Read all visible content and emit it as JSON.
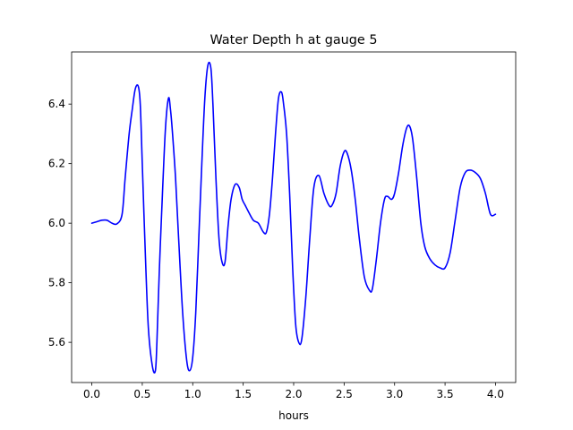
{
  "chart_data": {
    "type": "line",
    "title": "Water Depth h at gauge 5",
    "xlabel": "hours",
    "ylabel": "",
    "xlim": [
      -0.2,
      4.2
    ],
    "ylim": [
      5.465,
      6.575
    ],
    "xticks": [
      0.0,
      0.5,
      1.0,
      1.5,
      2.0,
      2.5,
      3.0,
      3.5,
      4.0
    ],
    "xtick_labels": [
      "0.0",
      "0.5",
      "1.0",
      "1.5",
      "2.0",
      "2.5",
      "3.0",
      "3.5",
      "4.0"
    ],
    "yticks": [
      5.6,
      5.8,
      6.0,
      6.2,
      6.4
    ],
    "ytick_labels": [
      "5.6",
      "5.8",
      "6.0",
      "6.2",
      "6.4"
    ],
    "grid": false,
    "series": [
      {
        "color": "#0000ff",
        "x": [
          0.0,
          0.05,
          0.1,
          0.15,
          0.2,
          0.25,
          0.3,
          0.33,
          0.37,
          0.4,
          0.43,
          0.46,
          0.48,
          0.5,
          0.53,
          0.56,
          0.6,
          0.63,
          0.645,
          0.67,
          0.7,
          0.73,
          0.76,
          0.78,
          0.8,
          0.83,
          0.86,
          0.9,
          0.94,
          0.97,
          1.0,
          1.03,
          1.06,
          1.09,
          1.12,
          1.15,
          1.18,
          1.2,
          1.23,
          1.26,
          1.29,
          1.32,
          1.35,
          1.38,
          1.42,
          1.46,
          1.49,
          1.52,
          1.55,
          1.6,
          1.65,
          1.7,
          1.73,
          1.76,
          1.79,
          1.82,
          1.85,
          1.88,
          1.9,
          1.93,
          1.96,
          1.99,
          2.02,
          2.05,
          2.08,
          2.12,
          2.16,
          2.2,
          2.25,
          2.3,
          2.35,
          2.38,
          2.42,
          2.46,
          2.5,
          2.53,
          2.57,
          2.61,
          2.65,
          2.7,
          2.75,
          2.78,
          2.82,
          2.86,
          2.9,
          2.93,
          2.97,
          3.0,
          3.04,
          3.08,
          3.12,
          3.15,
          3.18,
          3.22,
          3.26,
          3.3,
          3.35,
          3.4,
          3.45,
          3.5,
          3.55,
          3.6,
          3.65,
          3.7,
          3.75,
          3.8,
          3.85,
          3.9,
          3.95,
          4.0
        ],
        "y": [
          6.0,
          6.005,
          6.01,
          6.01,
          6.0,
          5.998,
          6.03,
          6.15,
          6.3,
          6.38,
          6.45,
          6.46,
          6.4,
          6.2,
          5.9,
          5.65,
          5.52,
          5.505,
          5.6,
          5.85,
          6.1,
          6.32,
          6.42,
          6.38,
          6.3,
          6.15,
          5.95,
          5.7,
          5.54,
          5.505,
          5.55,
          5.7,
          5.95,
          6.2,
          6.42,
          6.53,
          6.52,
          6.4,
          6.15,
          5.95,
          5.87,
          5.87,
          5.99,
          6.08,
          6.13,
          6.12,
          6.08,
          6.06,
          6.04,
          6.01,
          6.0,
          5.97,
          5.97,
          6.03,
          6.15,
          6.3,
          6.42,
          6.44,
          6.4,
          6.3,
          6.1,
          5.85,
          5.66,
          5.6,
          5.61,
          5.75,
          5.95,
          6.12,
          6.16,
          6.1,
          6.06,
          6.06,
          6.1,
          6.19,
          6.24,
          6.235,
          6.18,
          6.08,
          5.95,
          5.82,
          5.775,
          5.78,
          5.88,
          6.0,
          6.08,
          6.09,
          6.08,
          6.1,
          6.17,
          6.26,
          6.32,
          6.325,
          6.28,
          6.15,
          6.0,
          5.92,
          5.88,
          5.86,
          5.85,
          5.85,
          5.9,
          6.01,
          6.12,
          6.17,
          6.178,
          6.17,
          6.15,
          6.1,
          6.03,
          6.03
        ]
      }
    ]
  }
}
